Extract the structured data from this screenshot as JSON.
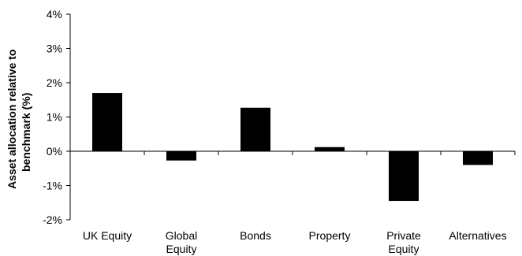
{
  "chart_data": {
    "type": "bar",
    "categories": [
      [
        "UK Equity"
      ],
      [
        "Global",
        "Equity"
      ],
      [
        "Bonds"
      ],
      [
        "Property"
      ],
      [
        "Private",
        "Equity"
      ],
      [
        "Alternatives"
      ]
    ],
    "values": [
      1.7,
      -0.27,
      1.27,
      0.12,
      -1.45,
      -0.4
    ],
    "ylabel": [
      "Asset allocation relative to",
      "benchmark (%)"
    ],
    "yticks": [
      "4%",
      "3%",
      "2%",
      "1%",
      "0%",
      "-1%",
      "-2%"
    ],
    "ylim": [
      -2,
      4
    ],
    "grid": false,
    "bar_color": "#000000"
  }
}
